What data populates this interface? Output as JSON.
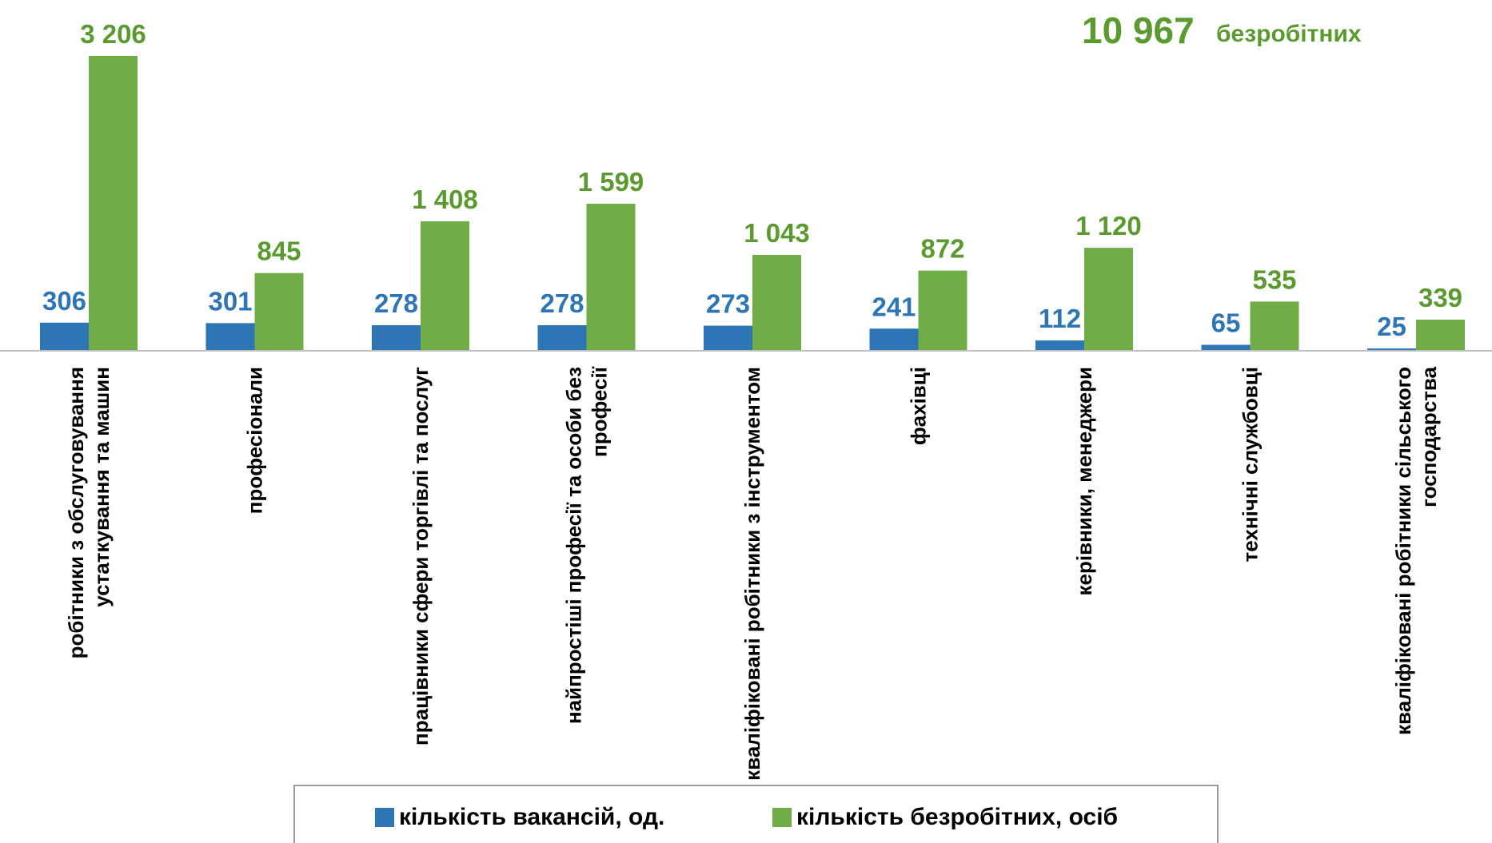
{
  "chart_data": {
    "type": "bar",
    "categories": [
      [
        "робітники з обслуговування",
        "устаткування та машин"
      ],
      [
        "професіонали"
      ],
      [
        "працівники сфери торгівлі та послуг"
      ],
      [
        "найпростіші професії  та особи без",
        "професії"
      ],
      [
        "кваліфіковані робітники з інструментом"
      ],
      [
        "фахівці"
      ],
      [
        "керівники, менеджери"
      ],
      [
        "технічні службовці"
      ],
      [
        "кваліфіковані робітники сільського",
        "господарства"
      ]
    ],
    "series": [
      {
        "name": "кількість вакансій,  од.",
        "color": "#2e75b6",
        "values": [
          306,
          301,
          278,
          278,
          273,
          241,
          112,
          65,
          25
        ],
        "labels": [
          "306",
          "301",
          "278",
          "278",
          "273",
          "241",
          "112",
          "65",
          "25"
        ]
      },
      {
        "name": "кількість безробітних,  осіб",
        "color": "#70ad47",
        "values": [
          3206,
          845,
          1408,
          1599,
          1043,
          872,
          1120,
          535,
          339
        ],
        "labels": [
          "3 206",
          "845",
          "1 408",
          "1 599",
          "1 043",
          "872",
          "1 120",
          "535",
          "339"
        ]
      }
    ],
    "ylim": [
      0,
      3206
    ],
    "legend_position": "bottom",
    "grid": false,
    "annotation": {
      "number": "10 967",
      "text": "безробітних",
      "color": "#5b9a2f"
    }
  }
}
